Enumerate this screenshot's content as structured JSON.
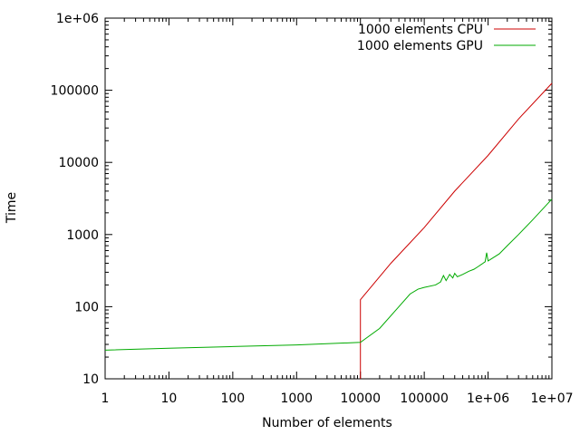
{
  "chart_data": {
    "type": "line",
    "title": "",
    "xlabel": "Number of elements",
    "ylabel": "Time",
    "x_scale": "log",
    "y_scale": "log",
    "xlim": [
      1,
      10000000
    ],
    "ylim": [
      10,
      1000000
    ],
    "grid": false,
    "legend_position": "top-right",
    "x_ticks": [
      {
        "value": 1,
        "label": "1"
      },
      {
        "value": 10,
        "label": "10"
      },
      {
        "value": 100,
        "label": "100"
      },
      {
        "value": 1000,
        "label": "1000"
      },
      {
        "value": 10000,
        "label": "10000"
      },
      {
        "value": 100000,
        "label": "100000"
      },
      {
        "value": 1000000,
        "label": "1e+06"
      },
      {
        "value": 10000000,
        "label": "1e+07"
      }
    ],
    "y_ticks": [
      {
        "value": 10,
        "label": "10"
      },
      {
        "value": 100,
        "label": "100"
      },
      {
        "value": 1000,
        "label": "1000"
      },
      {
        "value": 10000,
        "label": "10000"
      },
      {
        "value": 100000,
        "label": "100000"
      },
      {
        "value": 1000000,
        "label": "1e+06"
      }
    ],
    "series": [
      {
        "name": "1000 elements CPU",
        "color": "#cc0000",
        "points": [
          [
            10000,
            10
          ],
          [
            10000,
            125
          ],
          [
            30000,
            400
          ],
          [
            100000,
            1250
          ],
          [
            300000,
            4000
          ],
          [
            1000000,
            12500
          ],
          [
            3000000,
            40000
          ],
          [
            10000000,
            125000
          ]
        ]
      },
      {
        "name": "1000 elements GPU",
        "color": "#00aa00",
        "points": [
          [
            1,
            25
          ],
          [
            10,
            26.5
          ],
          [
            100,
            28
          ],
          [
            1000,
            29.5
          ],
          [
            10000,
            32
          ],
          [
            20000,
            50
          ],
          [
            40000,
            100
          ],
          [
            60000,
            150
          ],
          [
            80000,
            175
          ],
          [
            100000,
            185
          ],
          [
            150000,
            200
          ],
          [
            180000,
            220
          ],
          [
            200000,
            270
          ],
          [
            220000,
            230
          ],
          [
            250000,
            280
          ],
          [
            280000,
            250
          ],
          [
            300000,
            290
          ],
          [
            330000,
            260
          ],
          [
            400000,
            280
          ],
          [
            500000,
            310
          ],
          [
            600000,
            330
          ],
          [
            700000,
            360
          ],
          [
            800000,
            390
          ],
          [
            900000,
            420
          ],
          [
            950000,
            560
          ],
          [
            1000000,
            430
          ],
          [
            1500000,
            540
          ],
          [
            2000000,
            700
          ],
          [
            3000000,
            1000
          ],
          [
            5000000,
            1600
          ],
          [
            10000000,
            3100
          ]
        ]
      }
    ]
  }
}
